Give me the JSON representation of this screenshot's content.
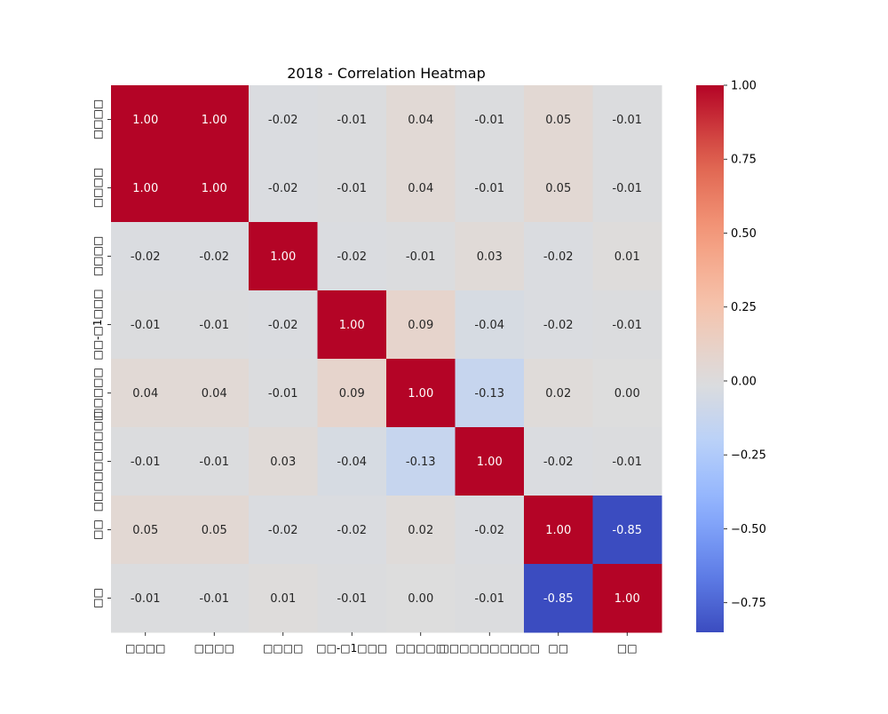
{
  "chart_data": {
    "type": "heatmap",
    "title": "2018 - Correlation Heatmap",
    "row_labels": [
      "□□□□",
      "□□□□",
      "□□□□",
      "□□-□1□□□",
      "□□□□□",
      "□□□□□□□□□□",
      "□□",
      "□□"
    ],
    "col_labels": [
      "□□□□",
      "□□□□",
      "□□□□",
      "□□-□1□□□",
      "□□□□□",
      "□□□□□□□□□□",
      "□□",
      "□□"
    ],
    "values": [
      [
        1.0,
        1.0,
        -0.02,
        -0.01,
        0.04,
        -0.01,
        0.05,
        -0.01
      ],
      [
        1.0,
        1.0,
        -0.02,
        -0.01,
        0.04,
        -0.01,
        0.05,
        -0.01
      ],
      [
        -0.02,
        -0.02,
        1.0,
        -0.02,
        -0.01,
        0.03,
        -0.02,
        0.01
      ],
      [
        -0.01,
        -0.01,
        -0.02,
        1.0,
        0.09,
        -0.04,
        -0.02,
        -0.01
      ],
      [
        0.04,
        0.04,
        -0.01,
        0.09,
        1.0,
        -0.13,
        0.02,
        0.0
      ],
      [
        -0.01,
        -0.01,
        0.03,
        -0.04,
        -0.13,
        1.0,
        -0.02,
        -0.01
      ],
      [
        0.05,
        0.05,
        -0.02,
        -0.02,
        0.02,
        -0.02,
        1.0,
        -0.85
      ],
      [
        -0.01,
        -0.01,
        0.01,
        -0.01,
        0.0,
        -0.01,
        -0.85,
        1.0
      ]
    ],
    "colormap": "coolwarm",
    "value_range": [
      -0.85,
      1.0
    ],
    "annotation_format": "0.00",
    "colorbar": {
      "ticks": [
        1.0,
        0.75,
        0.5,
        0.25,
        0.0,
        -0.25,
        -0.5,
        -0.75
      ],
      "tick_labels": [
        "1.00",
        "0.75",
        "0.50",
        "0.25",
        "0.00",
        "−0.25",
        "−0.50",
        "−0.75"
      ],
      "position": "right"
    },
    "grid": false
  }
}
